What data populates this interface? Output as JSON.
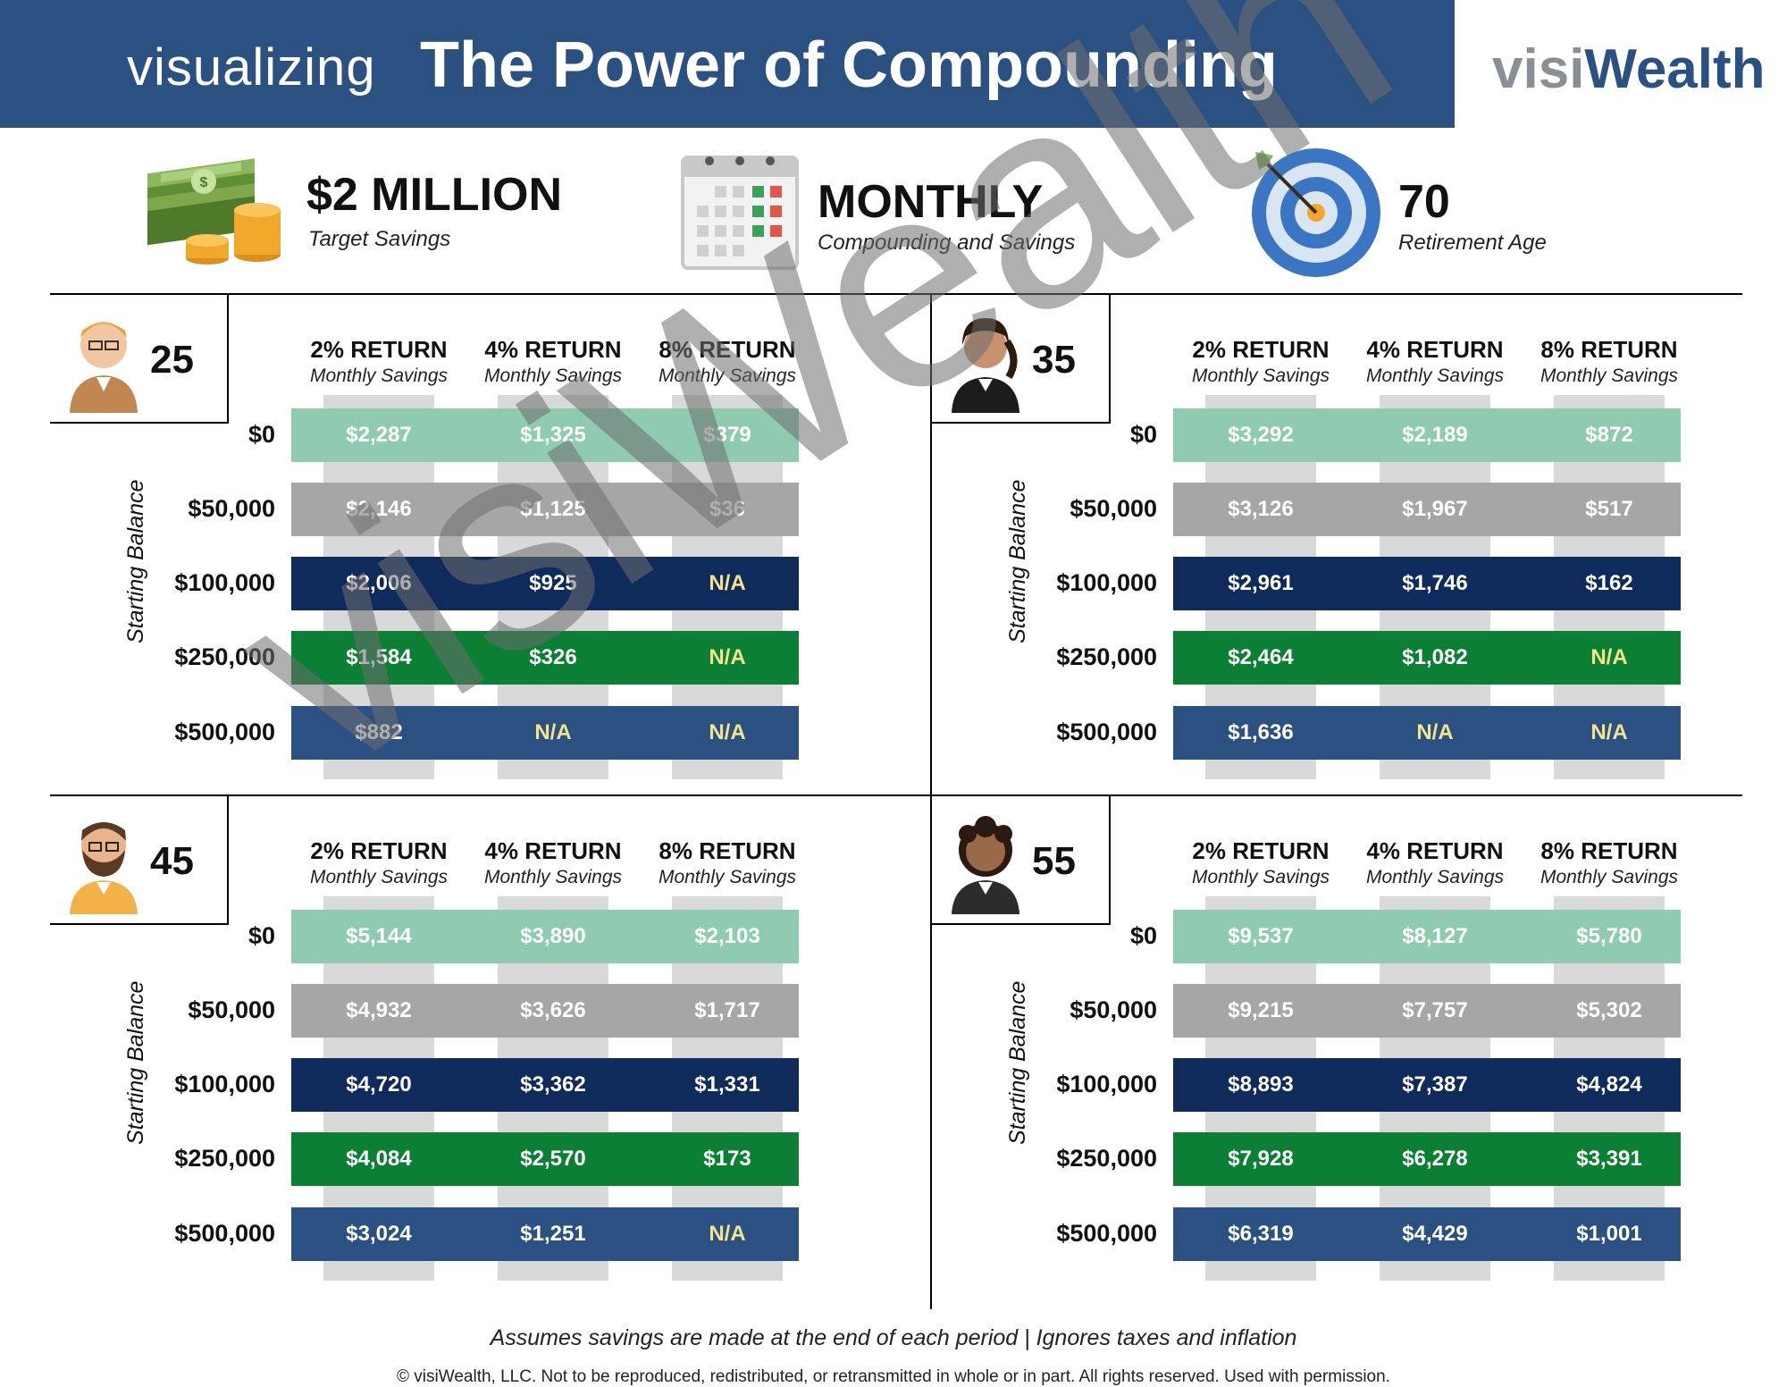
{
  "header": {
    "prefix": "visualizing",
    "title": "The Power of Compounding",
    "brand_part1": "visi",
    "brand_part2": "Wealth"
  },
  "info": [
    {
      "value": "$2 MILLION",
      "label": "Target Savings",
      "icon": "money-stack-icon"
    },
    {
      "value": "MONTHLY",
      "label": "Compounding and Savings",
      "icon": "calendar-icon"
    },
    {
      "value": "70",
      "label": "Retirement Age",
      "icon": "target-icon"
    }
  ],
  "columns": [
    {
      "rate": "2% RETURN",
      "sub": "Monthly Savings"
    },
    {
      "rate": "4% RETURN",
      "sub": "Monthly Savings"
    },
    {
      "rate": "8% RETURN",
      "sub": "Monthly Savings"
    }
  ],
  "row_labels": [
    "$0",
    "$50,000",
    "$100,000",
    "$250,000",
    "$500,000"
  ],
  "row_colors": [
    "#8fcbb0",
    "#a6a6a6",
    "#0e2b5c",
    "#0b7f33",
    "#2b5183"
  ],
  "side_label": "Starting Balance",
  "quadrants": [
    {
      "age": "25",
      "avatar": "young-man-avatar-icon",
      "rows": [
        [
          "$2,287",
          "$1,325",
          "$379"
        ],
        [
          "$2,146",
          "$1,125",
          "$36"
        ],
        [
          "$2,006",
          "$925",
          "N/A"
        ],
        [
          "$1,584",
          "$326",
          "N/A"
        ],
        [
          "$882",
          "N/A",
          "N/A"
        ]
      ]
    },
    {
      "age": "35",
      "avatar": "woman-ponytail-avatar-icon",
      "rows": [
        [
          "$3,292",
          "$2,189",
          "$872"
        ],
        [
          "$3,126",
          "$1,967",
          "$517"
        ],
        [
          "$2,961",
          "$1,746",
          "$162"
        ],
        [
          "$2,464",
          "$1,082",
          "N/A"
        ],
        [
          "$1,636",
          "N/A",
          "N/A"
        ]
      ]
    },
    {
      "age": "45",
      "avatar": "bearded-man-avatar-icon",
      "rows": [
        [
          "$5,144",
          "$3,890",
          "$2,103"
        ],
        [
          "$4,932",
          "$3,626",
          "$1,717"
        ],
        [
          "$4,720",
          "$3,362",
          "$1,331"
        ],
        [
          "$4,084",
          "$2,570",
          "$173"
        ],
        [
          "$3,024",
          "$1,251",
          "N/A"
        ]
      ]
    },
    {
      "age": "55",
      "avatar": "curly-hair-woman-avatar-icon",
      "rows": [
        [
          "$9,537",
          "$8,127",
          "$5,780"
        ],
        [
          "$9,215",
          "$7,757",
          "$5,302"
        ],
        [
          "$8,893",
          "$7,387",
          "$4,824"
        ],
        [
          "$7,928",
          "$6,278",
          "$3,391"
        ],
        [
          "$6,319",
          "$4,429",
          "$1,001"
        ]
      ]
    }
  ],
  "footer": {
    "note": "Assumes savings are made at the end of each period | Ignores taxes and inflation",
    "copyright": "© visiWealth, LLC. Not to be reproduced, redistributed, or retransmitted in whole or in part. All rights reserved. Used with permission."
  },
  "watermark": "visiWealth"
}
